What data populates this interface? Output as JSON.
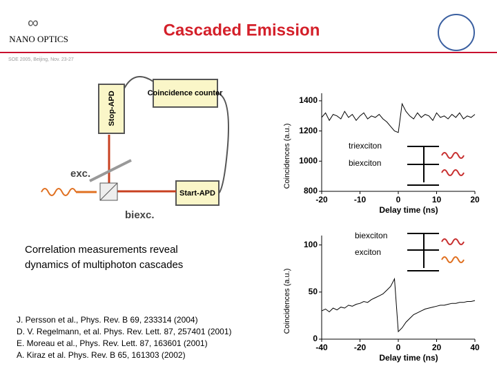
{
  "header": {
    "logo": "NANO OPTICS",
    "title": "Cascaded Emission",
    "subtitle": "SOE 2005, Beijing, Nov. 23-27"
  },
  "diagram": {
    "coincidence": "Coincidence counter",
    "stop": "Stop-APD",
    "start": "Start-APD",
    "exc": "exc.",
    "biexc": "biexc."
  },
  "summary": "Correlation measurements reveal dynamics of multiphoton cascades",
  "references": [
    "J. Persson et al., Phys. Rev. B 69, 233314 (2004)",
    "D. V. Regelmann, et al. Phys. Rev. Lett. 87, 257401 (2001)",
    "E. Moreau et al., Phys. Rev. Lett. 87, 163601 (2001)",
    "A. Kiraz et al. Phys. Rev. B 65, 161303 (2002)"
  ],
  "chart_data": [
    {
      "type": "line",
      "xlabel": "Delay time (ns)",
      "ylabel": "Coincidences (a.u.)",
      "annotations": [
        "triexciton",
        "biexciton"
      ],
      "xlim": [
        -20,
        20
      ],
      "xticks": [
        -20,
        -10,
        0,
        10,
        20
      ],
      "ylim": [
        800,
        1450
      ],
      "yticks": [
        800,
        1000,
        1200,
        1400
      ],
      "x": [
        -20,
        -19,
        -18,
        -17,
        -16,
        -15,
        -14,
        -13,
        -12,
        -11,
        -10,
        -9,
        -8,
        -7,
        -6,
        -5,
        -4,
        -3,
        -2,
        -1,
        0,
        1,
        2,
        3,
        4,
        5,
        6,
        7,
        8,
        9,
        10,
        11,
        12,
        13,
        14,
        15,
        16,
        17,
        18,
        19,
        20
      ],
      "series": [
        {
          "color": "#000000",
          "values": [
            1290,
            1320,
            1270,
            1310,
            1300,
            1280,
            1330,
            1290,
            1310,
            1270,
            1300,
            1320,
            1280,
            1300,
            1290,
            1310,
            1280,
            1260,
            1230,
            1200,
            1190,
            1380,
            1330,
            1300,
            1280,
            1320,
            1290,
            1310,
            1300,
            1270,
            1320,
            1290,
            1300,
            1280,
            1310,
            1290,
            1320,
            1280,
            1300,
            1290,
            1310
          ]
        }
      ]
    },
    {
      "type": "line",
      "xlabel": "Delay time (ns)",
      "ylabel": "Coincidences (a.u.)",
      "annotations": [
        "biexciton",
        "exciton"
      ],
      "xlim": [
        -40,
        40
      ],
      "xticks": [
        -40,
        -20,
        0,
        20,
        40
      ],
      "ylim": [
        0,
        110
      ],
      "yticks": [
        0,
        50,
        100
      ],
      "x": [
        -40,
        -38,
        -36,
        -34,
        -32,
        -30,
        -28,
        -26,
        -24,
        -22,
        -20,
        -18,
        -16,
        -14,
        -12,
        -10,
        -8,
        -6,
        -4,
        -2,
        0,
        2,
        4,
        6,
        8,
        10,
        12,
        14,
        16,
        18,
        20,
        22,
        24,
        26,
        28,
        30,
        32,
        34,
        36,
        38,
        40
      ],
      "series": [
        {
          "color": "#000000",
          "values": [
            30,
            32,
            29,
            33,
            31,
            34,
            33,
            36,
            35,
            37,
            38,
            40,
            39,
            42,
            44,
            46,
            48,
            52,
            56,
            64,
            8,
            12,
            18,
            22,
            26,
            28,
            30,
            32,
            33,
            34,
            35,
            36,
            36,
            37,
            38,
            38,
            39,
            39,
            40,
            40,
            41
          ]
        }
      ]
    }
  ]
}
